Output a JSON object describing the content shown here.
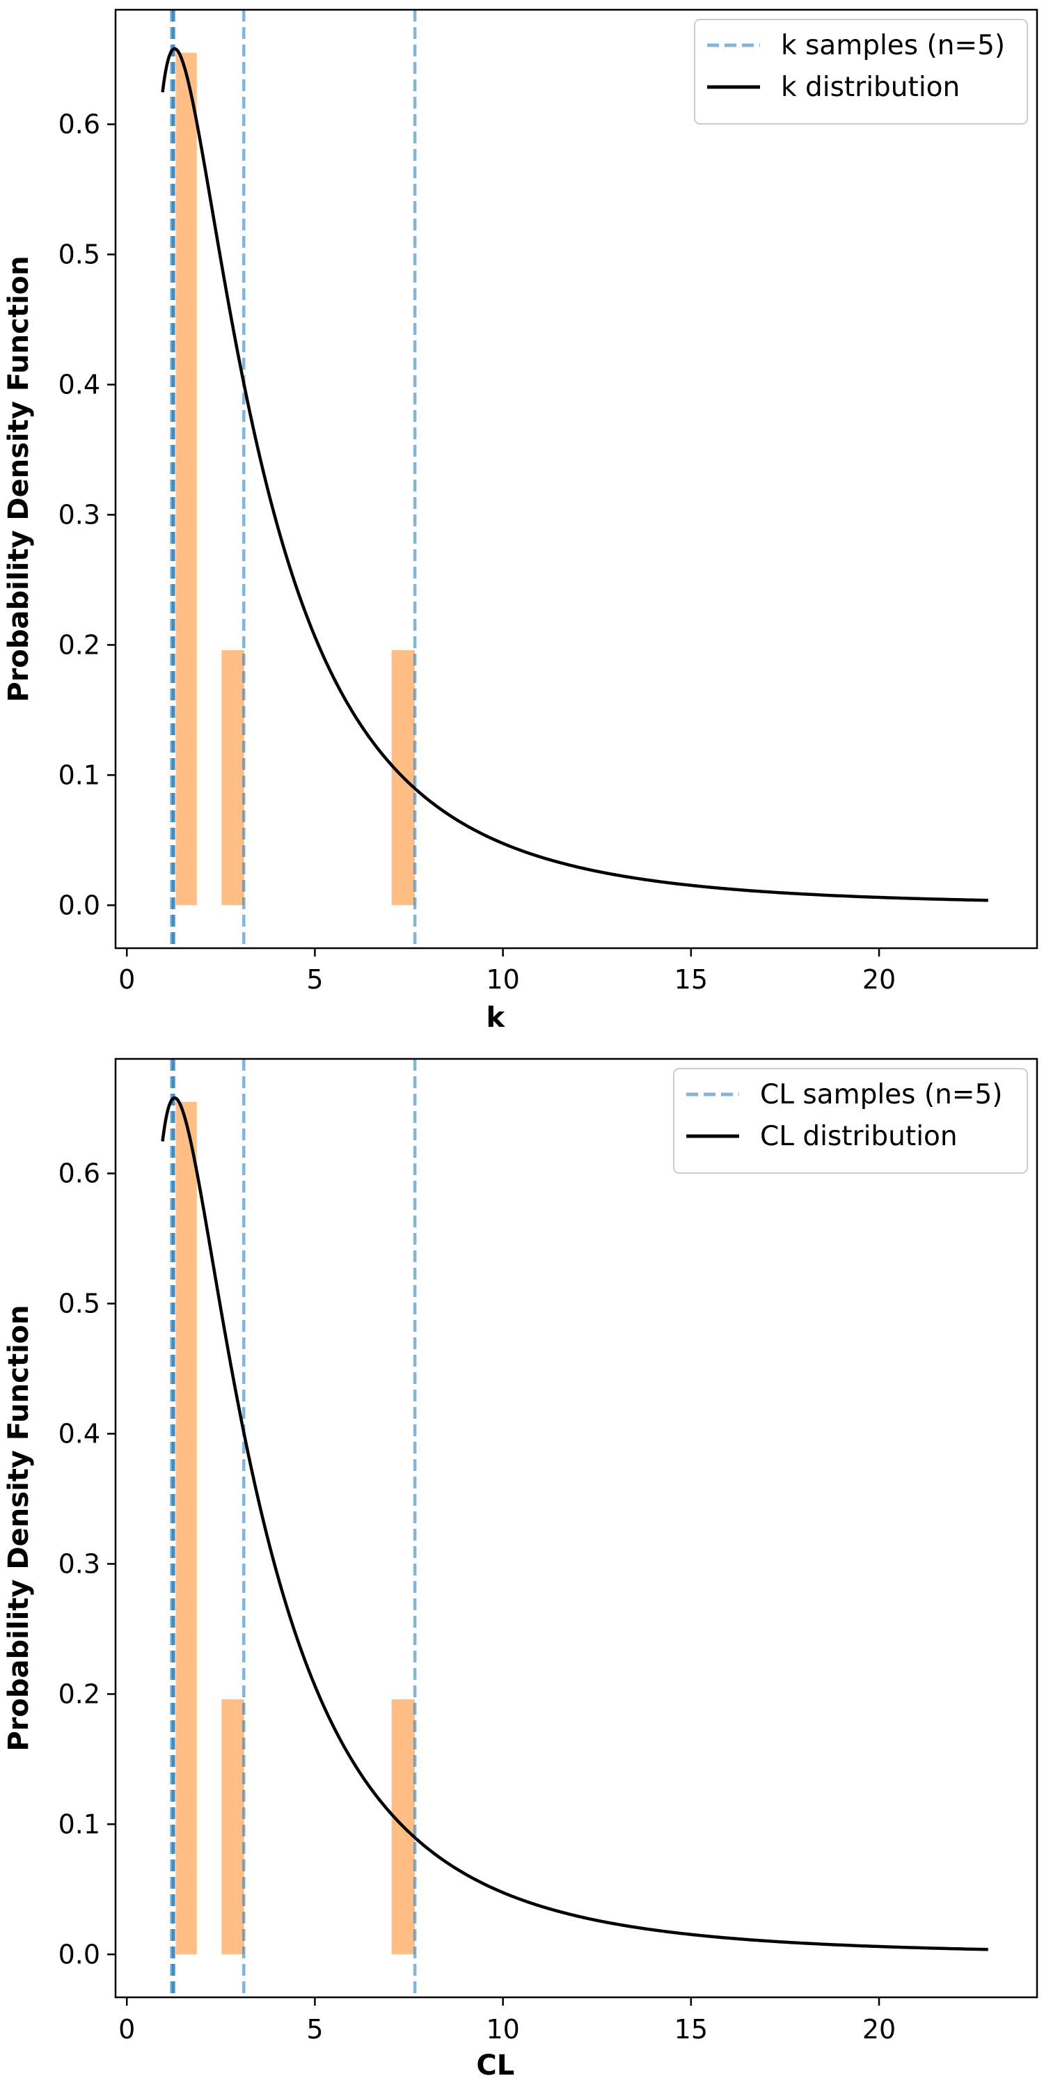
{
  "colors": {
    "histogram": "#ffbe86",
    "samples": "#1f77b4",
    "distribution": "#000000",
    "legend_border": "#cccccc"
  },
  "chart_data": [
    {
      "type": "histogram+line",
      "xlabel": "k",
      "ylabel": "Probability Density Function",
      "xlim": [
        -0.3,
        24.2
      ],
      "ylim": [
        -0.033,
        0.688
      ],
      "xticks": [
        0,
        5,
        10,
        15,
        20
      ],
      "yticks": [
        0.0,
        0.1,
        0.2,
        0.3,
        0.4,
        0.5,
        0.6
      ],
      "histogram": [
        {
          "x0": 1.3,
          "x1": 1.86,
          "density": 0.655
        },
        {
          "x0": 2.52,
          "x1": 3.12,
          "density": 0.196
        },
        {
          "x0": 7.04,
          "x1": 7.66,
          "density": 0.196
        }
      ],
      "samples": [
        1.19,
        1.23,
        1.25,
        3.11,
        7.66
      ],
      "distribution": {
        "name": "lognormal",
        "mode": 1.27,
        "sigma": 0.9,
        "x_start": 0.95,
        "x_end": 22.9,
        "peak": 0.658
      },
      "legend": [
        "k samples (n=5)",
        "k distribution"
      ],
      "legend_position": "top-right"
    },
    {
      "type": "histogram+line",
      "xlabel": "CL",
      "ylabel": "Probability Density Function",
      "xlim": [
        -0.3,
        24.2
      ],
      "ylim": [
        -0.033,
        0.688
      ],
      "xticks": [
        0,
        5,
        10,
        15,
        20
      ],
      "yticks": [
        0.0,
        0.1,
        0.2,
        0.3,
        0.4,
        0.5,
        0.6
      ],
      "histogram": [
        {
          "x0": 1.3,
          "x1": 1.86,
          "density": 0.655
        },
        {
          "x0": 2.52,
          "x1": 3.12,
          "density": 0.196
        },
        {
          "x0": 7.04,
          "x1": 7.66,
          "density": 0.196
        }
      ],
      "samples": [
        1.19,
        1.23,
        1.25,
        3.11,
        7.66
      ],
      "distribution": {
        "name": "lognormal",
        "mode": 1.27,
        "sigma": 0.9,
        "x_start": 0.95,
        "x_end": 22.9,
        "peak": 0.658
      },
      "legend": [
        "CL samples (n=5)",
        "CL distribution"
      ],
      "legend_position": "top-right"
    }
  ]
}
